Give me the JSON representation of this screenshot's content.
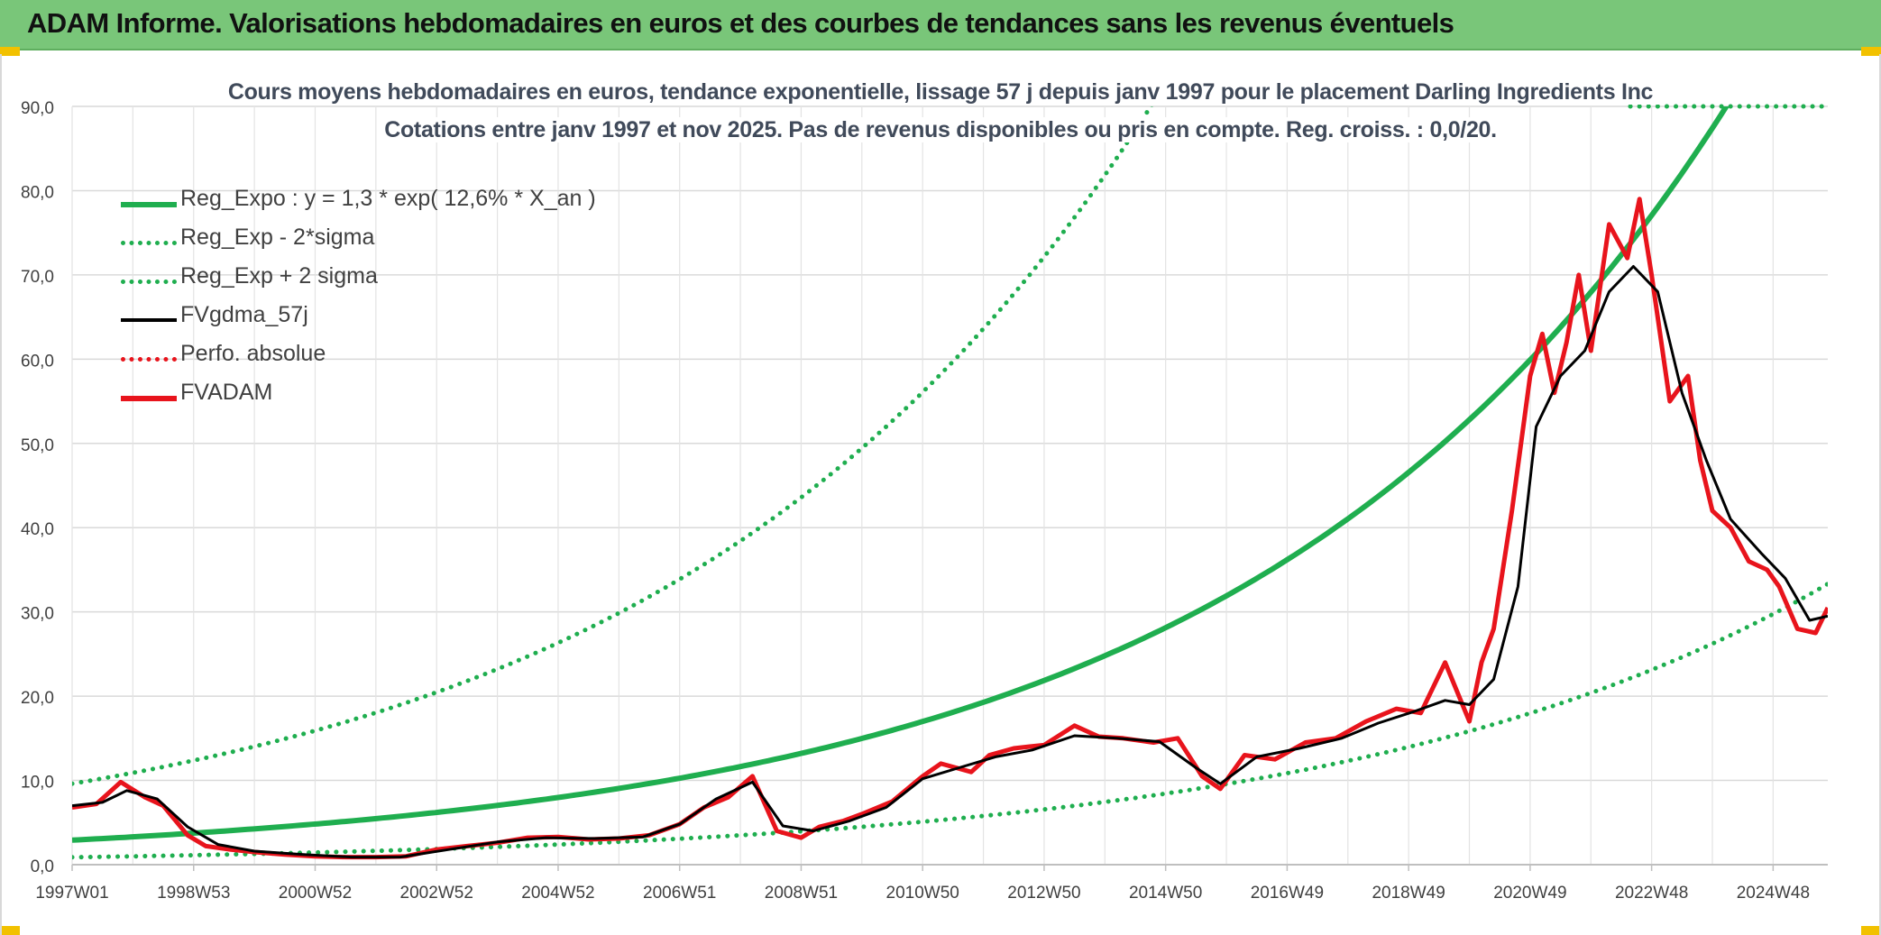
{
  "header": {
    "title": "ADAM Informe. Valorisations hebdomadaires en euros et des courbes de tendances sans les revenus éventuels",
    "background": "#79c679"
  },
  "chart_data": {
    "type": "line",
    "title": "Cours moyens hebdomadaires en euros, tendance exponentielle, lissage 57 j depuis janv 1997 pour le placement Darling Ingredients Inc",
    "subtitle": "Cotations entre janv 1997 et nov 2025. Pas de revenus disponibles ou pris en compte. Reg. croiss. : 0,0/20.",
    "xlabel": "",
    "ylabel": "",
    "ylim": [
      0,
      90
    ],
    "y_ticks": [
      "0,0",
      "10,0",
      "20,0",
      "30,0",
      "40,0",
      "50,0",
      "60,0",
      "70,0",
      "80,0",
      "90,0"
    ],
    "x_range_years": [
      1997.0,
      2025.9
    ],
    "x_ticks": [
      {
        "label": "1997W01",
        "year": 1997.0
      },
      {
        "label": "1998W53",
        "year": 1999.0
      },
      {
        "label": "2000W52",
        "year": 2001.0
      },
      {
        "label": "2002W52",
        "year": 2003.0
      },
      {
        "label": "2004W52",
        "year": 2005.0
      },
      {
        "label": "2006W51",
        "year": 2007.0
      },
      {
        "label": "2008W51",
        "year": 2009.0
      },
      {
        "label": "2010W50",
        "year": 2011.0
      },
      {
        "label": "2012W50",
        "year": 2013.0
      },
      {
        "label": "2014W50",
        "year": 2015.0
      },
      {
        "label": "2016W49",
        "year": 2017.0
      },
      {
        "label": "2018W49",
        "year": 2019.0
      },
      {
        "label": "2020W49",
        "year": 2021.0
      },
      {
        "label": "2022W48",
        "year": 2023.0
      },
      {
        "label": "2024W48",
        "year": 2025.0
      }
    ],
    "grid": true,
    "legend_position": "top-left",
    "regression": {
      "a": 1.3,
      "growth": 0.126,
      "sigma_factor_low": 0.3,
      "sigma_factor_high": 3.3
    },
    "legend": [
      {
        "name": "Reg_Expo : y = 1,3 * exp( 12,6% *  X_an )",
        "color": "#1fae4f",
        "style": "solid-thick"
      },
      {
        "name": "Reg_Exp - 2*sigma",
        "color": "#1fae4f",
        "style": "dotted"
      },
      {
        "name": "Reg_Exp + 2 sigma",
        "color": "#1fae4f",
        "style": "dotted"
      },
      {
        "name": "FVgdma_57j",
        "color": "#000000",
        "style": "solid"
      },
      {
        "name": "Perfo. absolue",
        "color": "#e8141c",
        "style": "dotted"
      },
      {
        "name": "FVADAM",
        "color": "#e8141c",
        "style": "solid-thick"
      }
    ],
    "series": [
      {
        "name": "FVADAM",
        "x": [
          1997.0,
          1997.4,
          1997.8,
          1998.2,
          1998.5,
          1998.9,
          1999.2,
          1999.6,
          2000.0,
          2000.5,
          2001.0,
          2001.5,
          2002.0,
          2002.5,
          2003.0,
          2003.5,
          2004.0,
          2004.5,
          2005.0,
          2005.5,
          2006.0,
          2006.5,
          2007.0,
          2007.4,
          2007.8,
          2008.2,
          2008.6,
          2009.0,
          2009.3,
          2009.7,
          2010.0,
          2010.5,
          2011.0,
          2011.3,
          2011.8,
          2012.1,
          2012.5,
          2013.0,
          2013.5,
          2013.9,
          2014.3,
          2014.8,
          2015.2,
          2015.6,
          2015.9,
          2016.3,
          2016.8,
          2017.3,
          2017.8,
          2018.3,
          2018.8,
          2019.2,
          2019.6,
          2020.0,
          2020.2,
          2020.4,
          2020.7,
          2021.0,
          2021.2,
          2021.4,
          2021.6,
          2021.8,
          2022.0,
          2022.3,
          2022.6,
          2022.8,
          2023.0,
          2023.3,
          2023.6,
          2023.8,
          2024.0,
          2024.3,
          2024.6,
          2024.9,
          2025.1,
          2025.4,
          2025.7,
          2025.9
        ],
        "values": [
          6.8,
          7.2,
          9.8,
          8.0,
          7.0,
          3.5,
          2.2,
          1.8,
          1.5,
          1.2,
          1.0,
          0.9,
          0.9,
          1.0,
          1.8,
          2.2,
          2.6,
          3.2,
          3.3,
          3.0,
          3.1,
          3.5,
          4.8,
          6.8,
          8.0,
          10.5,
          4.0,
          3.2,
          4.5,
          5.2,
          6.0,
          7.5,
          10.5,
          12.0,
          11.0,
          13.0,
          13.8,
          14.2,
          16.5,
          15.2,
          15.0,
          14.5,
          15.0,
          10.5,
          9.0,
          13.0,
          12.5,
          14.5,
          15.0,
          17.0,
          18.5,
          18.0,
          24.0,
          17.0,
          24.0,
          28.0,
          42.0,
          58.0,
          63.0,
          56.0,
          62.0,
          70.0,
          61.0,
          76.0,
          72.0,
          79.0,
          70.0,
          55.0,
          58.0,
          48.0,
          42.0,
          40.0,
          36.0,
          35.0,
          33.0,
          28.0,
          27.5,
          30.5
        ]
      },
      {
        "name": "FVgdma_57j",
        "x": [
          1997.0,
          1997.5,
          1997.9,
          1998.4,
          1998.9,
          1999.4,
          2000.0,
          2000.8,
          2001.6,
          2002.4,
          2003.2,
          2004.0,
          2004.8,
          2005.6,
          2006.4,
          2007.0,
          2007.6,
          2008.2,
          2008.7,
          2009.2,
          2009.8,
          2010.4,
          2011.0,
          2011.6,
          2012.2,
          2012.8,
          2013.5,
          2014.2,
          2014.9,
          2015.5,
          2015.9,
          2016.5,
          2017.2,
          2017.9,
          2018.5,
          2019.1,
          2019.6,
          2020.0,
          2020.4,
          2020.8,
          2021.1,
          2021.5,
          2021.9,
          2022.3,
          2022.7,
          2023.1,
          2023.5,
          2023.9,
          2024.3,
          2024.8,
          2025.2,
          2025.6,
          2025.9
        ],
        "values": [
          7.0,
          7.4,
          8.8,
          7.8,
          4.5,
          2.4,
          1.6,
          1.2,
          0.9,
          0.9,
          1.8,
          2.7,
          3.2,
          3.1,
          3.3,
          4.8,
          7.8,
          9.8,
          4.6,
          4.0,
          5.2,
          6.8,
          10.2,
          11.5,
          12.8,
          13.6,
          15.3,
          15.0,
          14.6,
          11.5,
          9.6,
          12.8,
          13.8,
          15.0,
          16.8,
          18.2,
          19.5,
          19.0,
          22.0,
          33.0,
          52.0,
          58.0,
          61.0,
          68.0,
          71.0,
          68.0,
          56.0,
          48.0,
          41.0,
          37.0,
          34.0,
          29.0,
          29.5
        ]
      }
    ]
  }
}
